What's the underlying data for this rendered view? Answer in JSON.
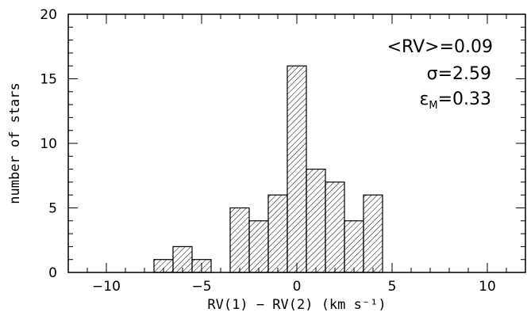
{
  "chart_data": {
    "type": "bar",
    "subtype": "histogram",
    "bin_width": 1,
    "bins": [
      {
        "left": -7.5,
        "right": -6.5,
        "count": 1
      },
      {
        "left": -6.5,
        "right": -5.5,
        "count": 2
      },
      {
        "left": -5.5,
        "right": -4.5,
        "count": 1
      },
      {
        "left": -3.5,
        "right": -2.5,
        "count": 5
      },
      {
        "left": -2.5,
        "right": -1.5,
        "count": 4
      },
      {
        "left": -1.5,
        "right": -0.5,
        "count": 6
      },
      {
        "left": -0.5,
        "right": 0.5,
        "count": 16
      },
      {
        "left": 0.5,
        "right": 1.5,
        "count": 8
      },
      {
        "left": 1.5,
        "right": 2.5,
        "count": 7
      },
      {
        "left": 2.5,
        "right": 3.5,
        "count": 4
      },
      {
        "left": 3.5,
        "right": 4.5,
        "count": 6
      }
    ],
    "xlim": [
      -12,
      12
    ],
    "ylim": [
      0,
      20
    ],
    "xticks": [
      "−10",
      "−5",
      "0",
      "5",
      "10"
    ],
    "yticks": [
      "0",
      "5",
      "10",
      "15",
      "20"
    ],
    "xlabel": "RV(1) − RV(2) (km s⁻¹)",
    "ylabel": "number of stars",
    "fill": "diagonal-hatch",
    "grid": false,
    "annotations": {
      "mean": "<RV>=0.09",
      "sigma": "σ=2.59",
      "eps_symbol": "ε",
      "eps_subscript": "M",
      "eps_value": "=0.33"
    }
  }
}
